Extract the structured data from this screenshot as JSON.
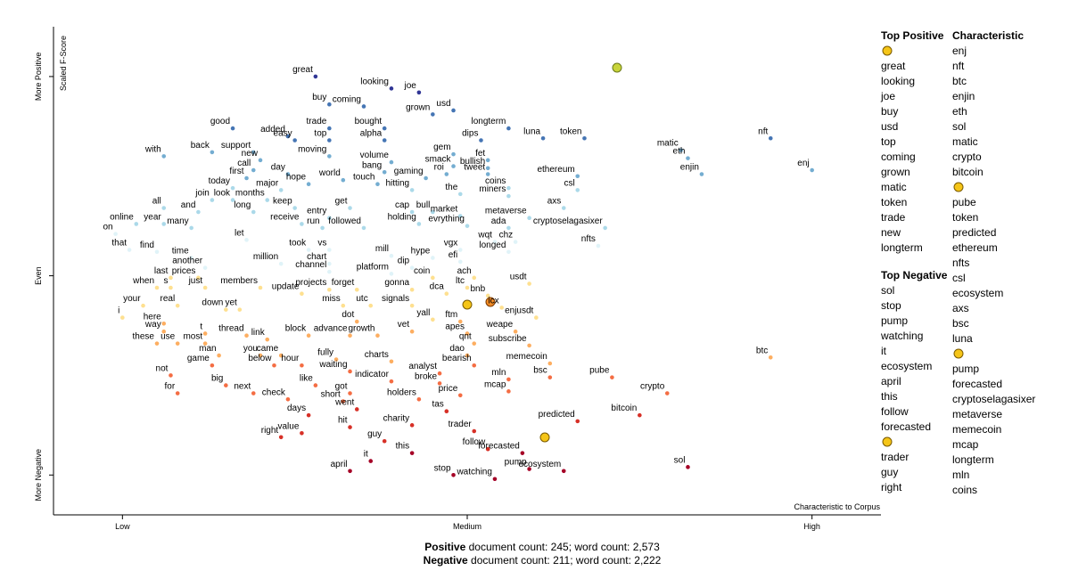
{
  "chart_data": {
    "type": "scatter",
    "x_label": "Characteristic to Corpus",
    "y_label": "Scaled F-Score",
    "xlim": [
      -0.1,
      1.1
    ],
    "ylim": [
      -1.2,
      1.25
    ],
    "xticks": [
      {
        "value": 0,
        "label": "Low"
      },
      {
        "value": 0.5,
        "label": "Medium"
      },
      {
        "value": 1,
        "label": "High"
      }
    ],
    "yticks": [
      {
        "value": -1,
        "label": "More Negative"
      },
      {
        "value": 0,
        "label": "Even"
      },
      {
        "value": 1,
        "label": "More Positive"
      }
    ],
    "color_scale": [
      "#a50026",
      "#d73027",
      "#f46d43",
      "#fdae61",
      "#fee090",
      "#e0f3f8",
      "#abd9e9",
      "#74add1",
      "#4575b4",
      "#313695"
    ],
    "labels": [
      "great",
      "looking",
      "joe",
      "buy",
      "coming",
      "grown",
      "usd",
      "good",
      "added",
      "trade",
      "bought",
      "longterm",
      "easy",
      "top",
      "alpha",
      "dips",
      "luna",
      "token",
      "back",
      "support",
      "new",
      "moving",
      "gem",
      "fet",
      "smack",
      "with",
      "volume",
      "call",
      "day",
      "bullish",
      "first",
      "bang",
      "roi",
      "tweet",
      "hope",
      "world",
      "gaming",
      "ethereum",
      "today",
      "major",
      "touch",
      "coins",
      "csl",
      "hitting",
      "join",
      "look",
      "months",
      "the",
      "miners",
      "all",
      "keep",
      "get",
      "cap",
      "bull",
      "axs",
      "and",
      "long",
      "entry",
      "market",
      "metaverse",
      "online",
      "year",
      "receive",
      "run",
      "followed",
      "holding",
      "evrything",
      "ada",
      "cryptoselagasixer",
      "many",
      "on",
      "let",
      "wqt",
      "chz",
      "nfts",
      "that",
      "find",
      "took",
      "vs",
      "mill",
      "hype",
      "vgx",
      "longed",
      "efi",
      "time",
      "million",
      "chart",
      "dip",
      "another",
      "channel",
      "platform",
      "coin",
      "ach",
      "usdt",
      "last",
      "prices",
      "when",
      "s",
      "just",
      "members",
      "update",
      "projects",
      "forget",
      "gonna",
      "dca",
      "ltc",
      "bnb",
      "your",
      "real",
      "down",
      "yet",
      "miss",
      "utc",
      "signals",
      "icx",
      "i",
      "here",
      "enjusdt",
      "dot",
      "yall",
      "ftm",
      "way",
      "t",
      "thread",
      "link",
      "block",
      "advance",
      "growth",
      "vet",
      "apes",
      "weape",
      "these",
      "use",
      "most",
      "qnt",
      "subscribe",
      "man",
      "you",
      "came",
      "dao",
      "game",
      "below",
      "hour",
      "charts",
      "bearish",
      "memecoin",
      "fully",
      "waiting",
      "not",
      "analyst",
      "indicator",
      "mln",
      "bsc",
      "pube",
      "btc",
      "big",
      "like",
      "got",
      "broke",
      "mcap",
      "for",
      "next",
      "price",
      "check",
      "crypto",
      "short",
      "holders",
      "tas",
      "went",
      "days",
      "bitcoin",
      "hit",
      "charity",
      "predicted",
      "value",
      "trader",
      "right",
      "guy",
      "follow",
      "this",
      "forecasted",
      "it",
      "pump",
      "april",
      "stop",
      "watching",
      "ecosystem",
      "sol",
      "nft",
      "matic",
      "eth",
      "enjin",
      "enj"
    ],
    "x": [
      0.28,
      0.39,
      0.43,
      0.3,
      0.35,
      0.45,
      0.48,
      0.16,
      0.24,
      0.3,
      0.38,
      0.56,
      0.25,
      0.3,
      0.38,
      0.52,
      0.61,
      0.67,
      0.13,
      0.19,
      0.2,
      0.3,
      0.48,
      0.53,
      0.48,
      0.06,
      0.39,
      0.19,
      0.24,
      0.53,
      0.18,
      0.38,
      0.47,
      0.53,
      0.27,
      0.32,
      0.44,
      0.66,
      0.16,
      0.23,
      0.37,
      0.56,
      0.66,
      0.42,
      0.13,
      0.16,
      0.21,
      0.49,
      0.56,
      0.06,
      0.25,
      0.33,
      0.42,
      0.45,
      0.64,
      0.11,
      0.19,
      0.3,
      0.49,
      0.59,
      0.02,
      0.06,
      0.26,
      0.29,
      0.35,
      0.43,
      0.5,
      0.56,
      0.7,
      0.1,
      -0.01,
      0.18,
      0.54,
      0.57,
      0.69,
      0.01,
      0.05,
      0.27,
      0.3,
      0.39,
      0.45,
      0.49,
      0.56,
      0.49,
      0.1,
      0.23,
      0.3,
      0.42,
      0.12,
      0.3,
      0.39,
      0.45,
      0.51,
      0.59,
      0.07,
      0.11,
      0.05,
      0.07,
      0.12,
      0.2,
      0.26,
      0.3,
      0.34,
      0.42,
      0.47,
      0.5,
      0.53,
      0.03,
      0.08,
      0.15,
      0.17,
      0.32,
      0.36,
      0.42,
      0.55,
      0.0,
      0.06,
      0.6,
      0.34,
      0.45,
      0.49,
      0.06,
      0.12,
      0.18,
      0.21,
      0.27,
      0.33,
      0.37,
      0.42,
      0.5,
      0.57,
      0.05,
      0.08,
      0.12,
      0.51,
      0.59,
      0.14,
      0.2,
      0.23,
      0.5,
      0.13,
      0.22,
      0.26,
      0.39,
      0.51,
      0.62,
      0.31,
      0.33,
      0.07,
      0.46,
      0.39,
      0.56,
      0.62,
      0.71,
      0.94,
      0.15,
      0.28,
      0.33,
      0.46,
      0.56,
      0.08,
      0.19,
      0.49,
      0.24,
      0.79,
      0.32,
      0.43,
      0.47,
      0.34,
      0.27,
      0.75,
      0.33,
      0.42,
      0.66,
      0.26,
      0.51,
      0.23,
      0.38,
      0.53,
      0.42,
      0.58,
      0.36,
      0.59,
      0.33,
      0.48,
      0.54,
      0.64,
      0.82,
      0.94,
      0.81,
      0.82,
      0.84,
      1.0
    ],
    "values": [
      1.0,
      0.94,
      0.92,
      0.86,
      0.85,
      0.81,
      0.83,
      0.74,
      0.7,
      0.74,
      0.74,
      0.74,
      0.68,
      0.68,
      0.68,
      0.68,
      0.69,
      0.69,
      0.62,
      0.62,
      0.58,
      0.6,
      0.61,
      0.58,
      0.55,
      0.6,
      0.57,
      0.53,
      0.51,
      0.54,
      0.49,
      0.52,
      0.51,
      0.51,
      0.46,
      0.48,
      0.49,
      0.5,
      0.44,
      0.43,
      0.46,
      0.44,
      0.43,
      0.43,
      0.38,
      0.38,
      0.38,
      0.41,
      0.4,
      0.34,
      0.34,
      0.34,
      0.32,
      0.32,
      0.34,
      0.32,
      0.32,
      0.29,
      0.3,
      0.29,
      0.26,
      0.26,
      0.26,
      0.24,
      0.24,
      0.26,
      0.25,
      0.24,
      0.24,
      0.24,
      0.21,
      0.18,
      0.17,
      0.17,
      0.15,
      0.13,
      0.12,
      0.13,
      0.13,
      0.1,
      0.09,
      0.13,
      0.12,
      0.07,
      0.09,
      0.06,
      0.06,
      0.04,
      0.04,
      0.02,
      0.01,
      -0.01,
      -0.01,
      -0.04,
      -0.01,
      -0.01,
      -0.06,
      -0.06,
      -0.06,
      -0.06,
      -0.09,
      -0.07,
      -0.07,
      -0.07,
      -0.09,
      -0.06,
      -0.1,
      -0.15,
      -0.15,
      -0.17,
      -0.17,
      -0.15,
      -0.15,
      -0.15,
      -0.16,
      -0.21,
      -0.24,
      -0.21,
      -0.23,
      -0.22,
      -0.23,
      -0.28,
      -0.29,
      -0.3,
      -0.32,
      -0.3,
      -0.3,
      -0.3,
      -0.28,
      -0.29,
      -0.28,
      -0.34,
      -0.34,
      -0.34,
      -0.34,
      -0.35,
      -0.4,
      -0.4,
      -0.4,
      -0.4,
      -0.45,
      -0.45,
      -0.45,
      -0.43,
      -0.45,
      -0.44,
      -0.42,
      -0.48,
      -0.5,
      -0.49,
      -0.53,
      -0.52,
      -0.51,
      -0.51,
      -0.41,
      -0.55,
      -0.55,
      -0.59,
      -0.54,
      -0.58,
      -0.59,
      -0.59,
      -0.6,
      -0.62,
      -0.59,
      -0.63,
      -0.62,
      -0.68,
      -0.67,
      -0.7,
      -0.7,
      -0.76,
      -0.75,
      -0.73,
      -0.79,
      -0.78,
      -0.81,
      -0.83,
      -0.87,
      -0.89,
      -0.89,
      -0.93,
      -0.97,
      -0.98,
      -1.0,
      -1.02,
      -0.98,
      -0.96,
      0.69,
      0.63,
      0.59,
      0.51,
      0.53
    ]
  },
  "side_panel": {
    "top_positive": {
      "title": "Top Positive",
      "terms": [
        null,
        "great",
        "looking",
        "joe",
        "buy",
        "usd",
        "top",
        "coming",
        "grown",
        "matic",
        "token",
        "trade",
        "new",
        "longterm"
      ]
    },
    "top_negative": {
      "title": "Top Negative",
      "terms": [
        "sol",
        "stop",
        "pump",
        "watching",
        "it",
        "ecosystem",
        "april",
        "this",
        "follow",
        "forecasted",
        null,
        "trader",
        "guy",
        "right"
      ]
    },
    "characteristic": {
      "title": "Characteristic",
      "terms": [
        "enj",
        "nft",
        "btc",
        "enjin",
        "eth",
        "sol",
        "matic",
        "crypto",
        "bitcoin",
        null,
        "pube",
        "token",
        "predicted",
        "ethereum",
        "nfts",
        "csl",
        "ecosystem",
        "axs",
        "bsc",
        "luna",
        null,
        "pump",
        "forecasted",
        "cryptoselagasixer",
        "metaverse",
        "memecoin",
        "mcap",
        "longterm",
        "mln",
        "coins"
      ]
    }
  },
  "footer": [
    {
      "label": "Positive",
      "text": "document count: 245; word count: 2,573"
    },
    {
      "label": "Negative",
      "text": "document count: 211; word count: 2,222"
    }
  ]
}
